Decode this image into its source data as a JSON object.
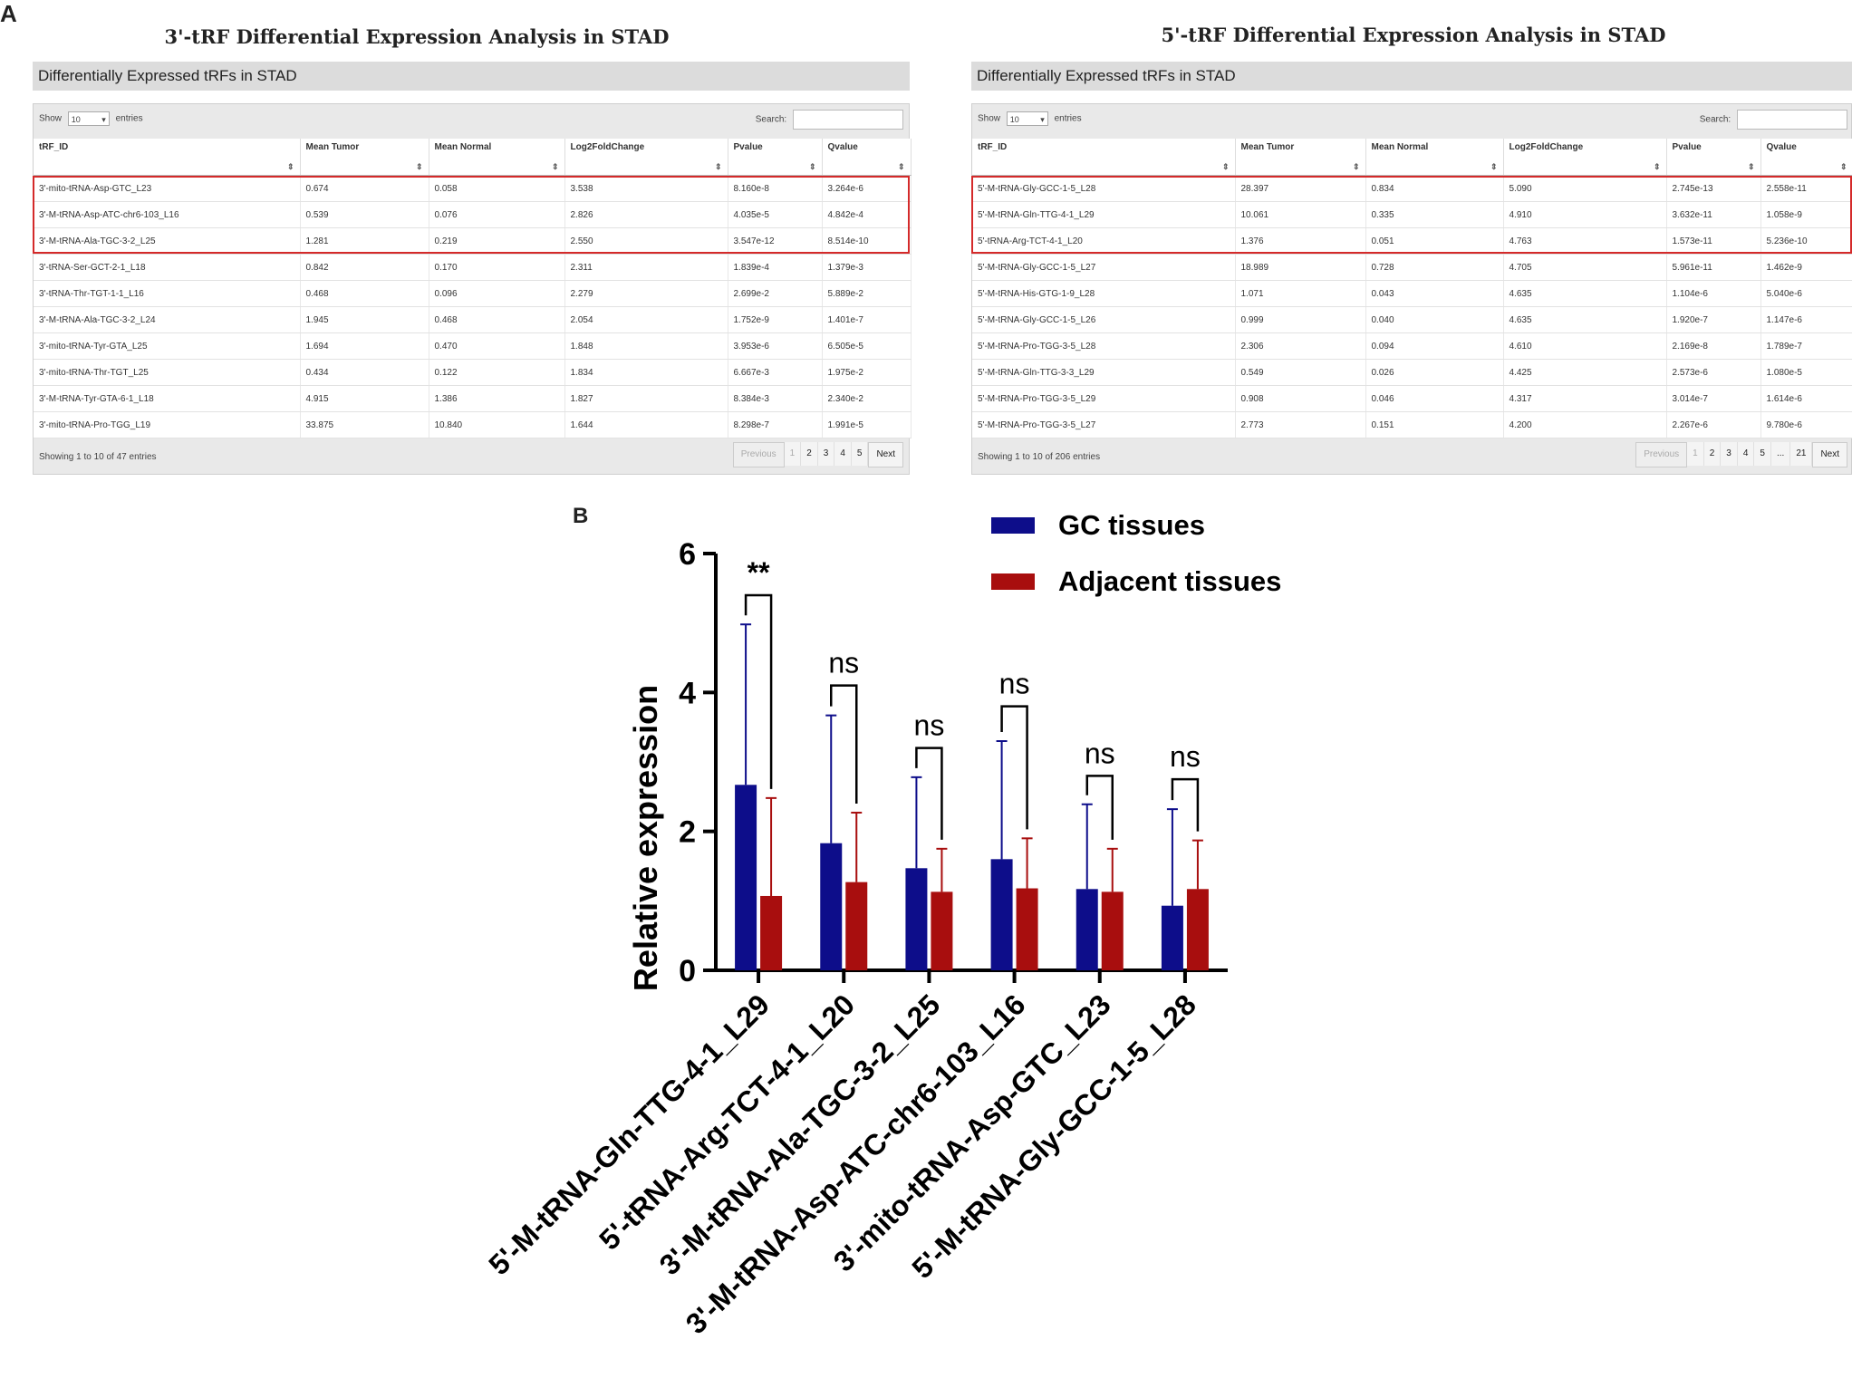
{
  "panel_a_label": "A",
  "panel_b_label": "B",
  "tables": [
    {
      "title": "3'-tRF Differential Expression Analysis in STAD",
      "header": "Differentially Expressed tRFs in STAD",
      "show_label": "Show",
      "entries_value": "10",
      "entries_label": "entries",
      "search_label": "Search:",
      "columns": [
        "tRF_ID",
        "Mean Tumor",
        "Mean Normal",
        "Log2FoldChange",
        "Pvalue",
        "Qvalue"
      ],
      "rows": [
        [
          "3'-mito-tRNA-Asp-GTC_L23",
          "0.674",
          "0.058",
          "3.538",
          "8.160e-8",
          "3.264e-6"
        ],
        [
          "3'-M-tRNA-Asp-ATC-chr6-103_L16",
          "0.539",
          "0.076",
          "2.826",
          "4.035e-5",
          "4.842e-4"
        ],
        [
          "3'-M-tRNA-Ala-TGC-3-2_L25",
          "1.281",
          "0.219",
          "2.550",
          "3.547e-12",
          "8.514e-10"
        ],
        [
          "3'-tRNA-Ser-GCT-2-1_L18",
          "0.842",
          "0.170",
          "2.311",
          "1.839e-4",
          "1.379e-3"
        ],
        [
          "3'-tRNA-Thr-TGT-1-1_L16",
          "0.468",
          "0.096",
          "2.279",
          "2.699e-2",
          "5.889e-2"
        ],
        [
          "3'-M-tRNA-Ala-TGC-3-2_L24",
          "1.945",
          "0.468",
          "2.054",
          "1.752e-9",
          "1.401e-7"
        ],
        [
          "3'-mito-tRNA-Tyr-GTA_L25",
          "1.694",
          "0.470",
          "1.848",
          "3.953e-6",
          "6.505e-5"
        ],
        [
          "3'-mito-tRNA-Thr-TGT_L25",
          "0.434",
          "0.122",
          "1.834",
          "6.667e-3",
          "1.975e-2"
        ],
        [
          "3'-M-tRNA-Tyr-GTA-6-1_L18",
          "4.915",
          "1.386",
          "1.827",
          "8.384e-3",
          "2.340e-2"
        ],
        [
          "3'-mito-tRNA-Pro-TGG_L19",
          "33.875",
          "10.840",
          "1.644",
          "8.298e-7",
          "1.991e-5"
        ]
      ],
      "info": "Showing 1 to 10 of 47 entries",
      "pager": [
        "Previous",
        "1",
        "2",
        "3",
        "4",
        "5",
        "Next"
      ]
    },
    {
      "title": "5'-tRF Differential Expression Analysis in STAD",
      "header": "Differentially Expressed tRFs in STAD",
      "show_label": "Show",
      "entries_value": "10",
      "entries_label": "entries",
      "search_label": "Search:",
      "columns": [
        "tRF_ID",
        "Mean Tumor",
        "Mean Normal",
        "Log2FoldChange",
        "Pvalue",
        "Qvalue"
      ],
      "rows": [
        [
          "5'-M-tRNA-Gly-GCC-1-5_L28",
          "28.397",
          "0.834",
          "5.090",
          "2.745e-13",
          "2.558e-11"
        ],
        [
          "5'-M-tRNA-Gln-TTG-4-1_L29",
          "10.061",
          "0.335",
          "4.910",
          "3.632e-11",
          "1.058e-9"
        ],
        [
          "5'-tRNA-Arg-TCT-4-1_L20",
          "1.376",
          "0.051",
          "4.763",
          "1.573e-11",
          "5.236e-10"
        ],
        [
          "5'-M-tRNA-Gly-GCC-1-5_L27",
          "18.989",
          "0.728",
          "4.705",
          "5.961e-11",
          "1.462e-9"
        ],
        [
          "5'-M-tRNA-His-GTG-1-9_L28",
          "1.071",
          "0.043",
          "4.635",
          "1.104e-6",
          "5.040e-6"
        ],
        [
          "5'-M-tRNA-Gly-GCC-1-5_L26",
          "0.999",
          "0.040",
          "4.635",
          "1.920e-7",
          "1.147e-6"
        ],
        [
          "5'-M-tRNA-Pro-TGG-3-5_L28",
          "2.306",
          "0.094",
          "4.610",
          "2.169e-8",
          "1.789e-7"
        ],
        [
          "5'-M-tRNA-Gln-TTG-3-3_L29",
          "0.549",
          "0.026",
          "4.425",
          "2.573e-6",
          "1.080e-5"
        ],
        [
          "5'-M-tRNA-Pro-TGG-3-5_L29",
          "0.908",
          "0.046",
          "4.317",
          "3.014e-7",
          "1.614e-6"
        ],
        [
          "5'-M-tRNA-Pro-TGG-3-5_L27",
          "2.773",
          "0.151",
          "4.200",
          "2.267e-6",
          "9.780e-6"
        ]
      ],
      "info": "Showing 1 to 10 of 206 entries",
      "pager": [
        "Previous",
        "1",
        "2",
        "3",
        "4",
        "5",
        "...",
        "21",
        "Next"
      ]
    }
  ],
  "chart_data": {
    "type": "bar",
    "ylabel": "Relative expression",
    "ylim": [
      0,
      6
    ],
    "yticks": [
      0,
      2,
      4,
      6
    ],
    "categories": [
      "5'-M-tRNA-Gln-TTG-4-1_L29",
      "5'-tRNA-Arg-TCT-4-1_L20",
      "3'-M-tRNA-Ala-TGC-3-2_L25",
      "3'-M-tRNA-Asp-ATC-chr6-103_L16",
      "3'-mito-tRNA-Asp-GTC_L23",
      "5'-M-tRNA-Gly-GCC-1-5_L28"
    ],
    "series": [
      {
        "name": "GC tissues",
        "color": "#0d0d8a",
        "values": [
          2.67,
          1.83,
          1.47,
          1.6,
          1.17,
          0.93
        ],
        "err_upper": [
          4.98,
          3.67,
          2.78,
          3.3,
          2.39,
          2.32
        ]
      },
      {
        "name": "Adjacent tissues",
        "color": "#a80e0e",
        "values": [
          1.07,
          1.27,
          1.13,
          1.18,
          1.13,
          1.17
        ],
        "err_upper": [
          2.48,
          2.27,
          1.75,
          1.9,
          1.75,
          1.87
        ]
      }
    ],
    "significance": [
      "**",
      "ns",
      "ns",
      "ns",
      "ns",
      "ns"
    ],
    "sig_bracket_y": [
      5.4,
      4.1,
      3.2,
      3.8,
      2.8,
      2.75
    ]
  }
}
